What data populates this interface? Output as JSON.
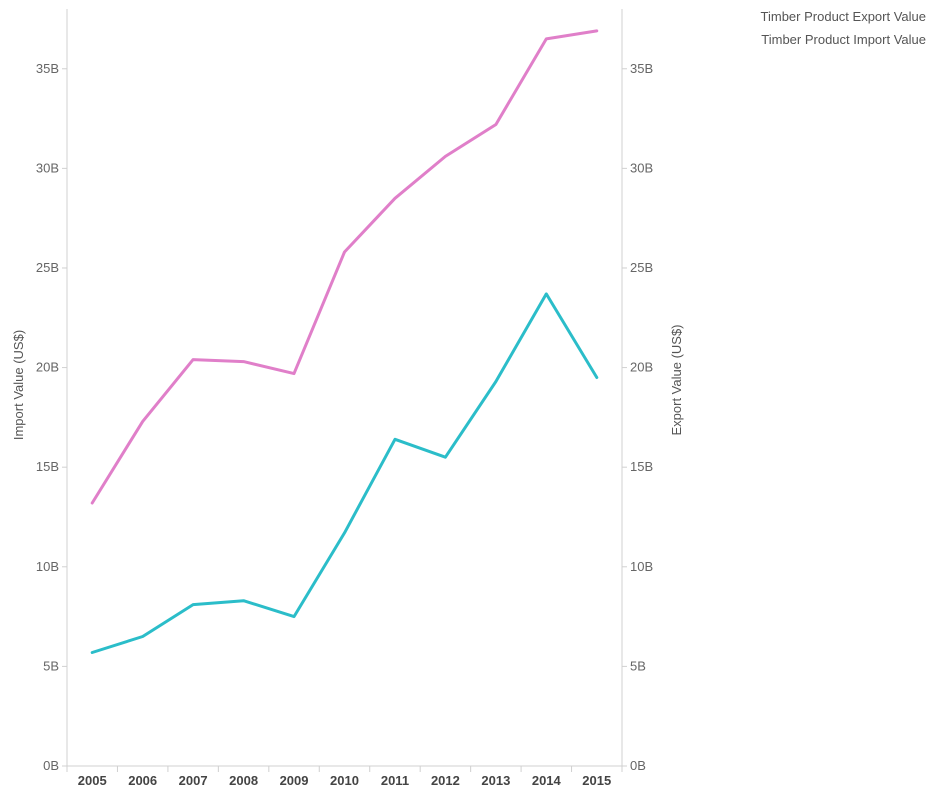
{
  "chart_data": {
    "type": "line",
    "categories": [
      "2005",
      "2006",
      "2007",
      "2008",
      "2009",
      "2010",
      "2011",
      "2012",
      "2013",
      "2014",
      "2015"
    ],
    "series": [
      {
        "name": "Timber Product Export Value",
        "axis": "right",
        "color": "#2BBDC9",
        "values": [
          5.7,
          6.5,
          8.1,
          8.3,
          7.5,
          11.7,
          16.4,
          15.5,
          19.3,
          23.7,
          19.5
        ]
      },
      {
        "name": "Timber Product Import Value",
        "axis": "left",
        "color": "#E07FC9",
        "values": [
          13.2,
          17.3,
          20.4,
          20.3,
          19.7,
          25.8,
          28.5,
          30.6,
          32.2,
          36.5,
          36.9
        ]
      }
    ],
    "xlabel": "",
    "ylabel_left": "Import Value (US$)",
    "ylabel_right": "Export Value  (US$)",
    "ylim": [
      0,
      38
    ],
    "yticks": [
      0,
      5,
      10,
      15,
      20,
      25,
      30,
      35
    ],
    "ytick_labels": [
      "0B",
      "5B",
      "10B",
      "15B",
      "20B",
      "25B",
      "30B",
      "35B"
    ],
    "y_unit": "billions US$",
    "legend_position": "top-right",
    "grid": false
  }
}
